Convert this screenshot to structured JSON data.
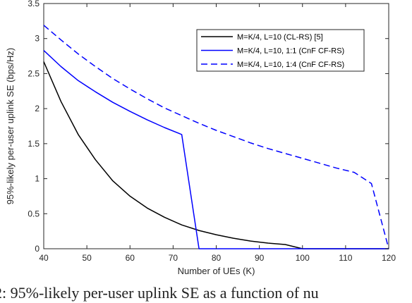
{
  "chart_data": {
    "type": "line",
    "xlabel": "Number of UEs (K)",
    "ylabel": "95%-likely per-user uplink SE (bps/Hz)",
    "xlim": [
      40,
      120
    ],
    "ylim": [
      0,
      3.5
    ],
    "xticks": [
      40,
      50,
      60,
      70,
      80,
      90,
      100,
      110,
      120
    ],
    "yticks": [
      0,
      0.5,
      1,
      1.5,
      2,
      2.5,
      3,
      3.5
    ],
    "grid": false,
    "legend_position": "top-right",
    "series": [
      {
        "name": "M=K/4, L=10 (CL-RS) [5]",
        "color": "#000000",
        "dash": "solid",
        "x": [
          40,
          44,
          48,
          52,
          56,
          60,
          64,
          68,
          72,
          76,
          80,
          84,
          88,
          92,
          96,
          100,
          104,
          108,
          112,
          116,
          120
        ],
        "y": [
          2.67,
          2.1,
          1.63,
          1.27,
          0.97,
          0.75,
          0.58,
          0.45,
          0.34,
          0.26,
          0.2,
          0.15,
          0.11,
          0.08,
          0.06,
          0.0,
          0.0,
          0.0,
          0.0,
          0.0,
          0.0
        ]
      },
      {
        "name": "M=K/4, L=10, 1:1 (CnF CF-RS)",
        "color": "#0000ff",
        "dash": "solid",
        "x": [
          40,
          44,
          48,
          52,
          56,
          60,
          64,
          68,
          72,
          76,
          80,
          84,
          88,
          92,
          96,
          100,
          104,
          108,
          112,
          116,
          120
        ],
        "y": [
          2.83,
          2.6,
          2.4,
          2.24,
          2.09,
          1.96,
          1.84,
          1.73,
          1.63,
          0.0,
          0.0,
          0.0,
          0.0,
          0.0,
          0.0,
          0.0,
          0.0,
          0.0,
          0.0,
          0.0,
          0.0
        ]
      },
      {
        "name": "M=K/4, L=10, 1:4 (CnF CF-RS)",
        "color": "#0000ff",
        "dash": "dashed",
        "x": [
          40,
          44,
          48,
          52,
          56,
          60,
          64,
          68,
          72,
          76,
          80,
          84,
          88,
          92,
          96,
          100,
          104,
          108,
          112,
          116,
          120
        ],
        "y": [
          3.19,
          2.98,
          2.78,
          2.6,
          2.43,
          2.28,
          2.14,
          2.01,
          1.9,
          1.79,
          1.69,
          1.6,
          1.51,
          1.43,
          1.36,
          1.29,
          1.22,
          1.15,
          1.09,
          0.93,
          0.0
        ]
      }
    ]
  },
  "caption": {
    "text": "2: 95%-likely per-user uplink SE as a function of nu"
  }
}
